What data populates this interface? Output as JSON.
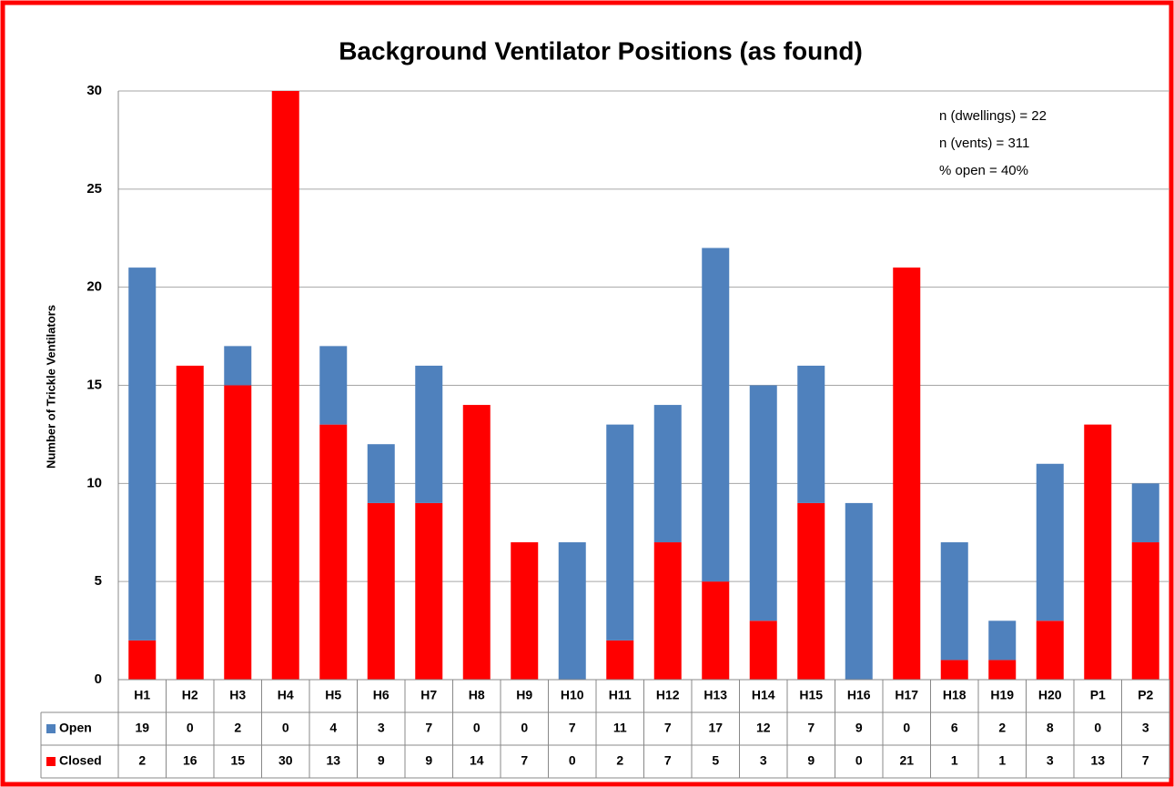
{
  "chart_data": {
    "type": "bar",
    "stacked": true,
    "title": "Background Ventilator Positions (as found)",
    "y_label": "Number of Trickle Ventilators",
    "annotations": [
      "n (dwellings) = 22",
      "n (vents) = 311",
      "% open = 40%"
    ],
    "categories": [
      "H1",
      "H2",
      "H3",
      "H4",
      "H5",
      "H6",
      "H7",
      "H8",
      "H9",
      "H10",
      "H11",
      "H12",
      "H13",
      "H14",
      "H15",
      "H16",
      "H17",
      "H18",
      "H19",
      "H20",
      "P1",
      "P2"
    ],
    "series": [
      {
        "name": "Open",
        "color": "#4f81bd",
        "values": [
          19,
          0,
          2,
          0,
          4,
          3,
          7,
          0,
          0,
          7,
          11,
          7,
          17,
          12,
          7,
          9,
          0,
          6,
          2,
          8,
          0,
          3
        ]
      },
      {
        "name": "Closed",
        "color": "#ff0000",
        "values": [
          2,
          16,
          15,
          30,
          13,
          9,
          9,
          14,
          7,
          0,
          2,
          7,
          5,
          3,
          9,
          0,
          21,
          1,
          1,
          3,
          13,
          7
        ]
      }
    ],
    "ylim": [
      0,
      30
    ],
    "yticks": [
      0,
      5,
      10,
      15,
      20,
      25,
      30
    ],
    "grid": true
  }
}
